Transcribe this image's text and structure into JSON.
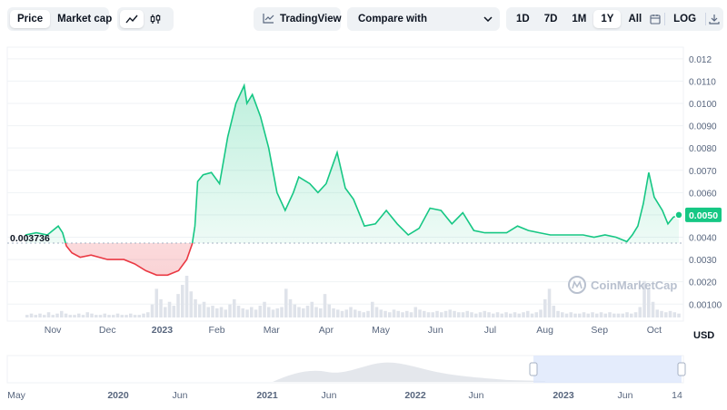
{
  "toolbar": {
    "view_tabs": [
      "Price",
      "Market cap"
    ],
    "active_view": "Price",
    "chart_style_icons": [
      "line-chart-icon",
      "candlestick-chart-icon"
    ],
    "tradingview_label": "TradingView",
    "compare_label": "Compare with",
    "ranges": [
      "1D",
      "7D",
      "1M",
      "1Y",
      "All"
    ],
    "active_range": "1Y",
    "log_label": "LOG"
  },
  "colors": {
    "up": "#16c784",
    "down": "#ea3943",
    "accent_badge": "#16c784",
    "navigator_fill": "#dbe6fb"
  },
  "watermark": "CoinMarketCap",
  "currency_label": "USD",
  "chart_data": {
    "type": "line",
    "baseline_value": "0.003736",
    "current_value": "0.0050",
    "y_ticks": [
      "0.012",
      "0.0110",
      "0.0100",
      "0.0090",
      "0.0080",
      "0.0070",
      "0.0060",
      "0.0050",
      "0.0040",
      "0.0030",
      "0.0020",
      "0.00100"
    ],
    "y_tick_values": [
      0.012,
      0.011,
      0.01,
      0.009,
      0.008,
      0.007,
      0.006,
      0.005,
      0.004,
      0.003,
      0.002,
      0.001
    ],
    "ylim": [
      0.0004,
      0.0124
    ],
    "x_ticks": [
      "Nov",
      "Dec",
      "2023",
      "Feb",
      "Mar",
      "Apr",
      "May",
      "Jun",
      "Jul",
      "Aug",
      "Sep",
      "Oct"
    ],
    "x_tick_positions": [
      0.5,
      1.5,
      2.5,
      3.5,
      4.5,
      5.5,
      6.5,
      7.5,
      8.5,
      9.5,
      10.5,
      11.5
    ],
    "xlim": [
      0,
      12
    ],
    "series": [
      {
        "x": [
          0,
          0.2,
          0.4,
          0.6,
          0.68,
          0.75,
          0.85,
          1.0,
          1.2,
          1.5,
          1.8,
          2.0,
          2.2,
          2.4,
          2.6,
          2.8,
          2.95,
          3.05,
          3.1,
          3.15,
          3.25,
          3.4,
          3.55,
          3.7,
          3.85,
          4.0,
          4.05,
          4.15,
          4.3,
          4.45,
          4.6,
          4.75,
          4.9,
          5.0,
          5.2,
          5.35,
          5.5,
          5.6,
          5.7,
          5.85,
          6.0,
          6.2,
          6.4,
          6.6,
          6.8,
          7.0,
          7.2,
          7.4,
          7.6,
          7.8,
          8.0,
          8.2,
          8.4,
          8.6,
          8.8,
          9.0,
          9.2,
          9.4,
          9.6,
          9.8,
          10.0,
          10.2,
          10.4,
          10.6,
          10.8,
          11.0,
          11.1,
          11.2,
          11.3,
          11.4,
          11.5,
          11.65,
          11.75,
          11.85,
          11.95
        ],
        "y": [
          0.0041,
          0.0042,
          0.0041,
          0.0045,
          0.0042,
          0.0036,
          0.0033,
          0.0031,
          0.0032,
          0.003,
          0.003,
          0.0028,
          0.0025,
          0.0023,
          0.0023,
          0.0025,
          0.003,
          0.0037,
          0.0045,
          0.0065,
          0.0068,
          0.0069,
          0.0064,
          0.0085,
          0.01,
          0.0108,
          0.01,
          0.0104,
          0.0094,
          0.008,
          0.006,
          0.0052,
          0.006,
          0.0067,
          0.0064,
          0.006,
          0.0064,
          0.0071,
          0.0078,
          0.0062,
          0.0057,
          0.0045,
          0.0046,
          0.0052,
          0.0046,
          0.0041,
          0.0044,
          0.0053,
          0.0052,
          0.0046,
          0.0051,
          0.0043,
          0.0042,
          0.0042,
          0.0042,
          0.0045,
          0.0043,
          0.0042,
          0.0041,
          0.0041,
          0.0041,
          0.0041,
          0.004,
          0.0041,
          0.004,
          0.0038,
          0.0041,
          0.0045,
          0.0055,
          0.0069,
          0.0058,
          0.0052,
          0.0046,
          0.0049,
          0.005
        ]
      }
    ],
    "volume_bars": [
      2,
      3,
      2,
      3,
      2,
      4,
      2,
      3,
      5,
      3,
      2,
      2,
      3,
      2,
      4,
      3,
      2,
      2,
      3,
      2,
      2,
      3,
      2,
      2,
      3,
      2,
      2,
      3,
      4,
      10,
      22,
      14,
      8,
      12,
      9,
      18,
      25,
      32,
      20,
      14,
      10,
      12,
      8,
      9,
      7,
      8,
      6,
      10,
      14,
      9,
      7,
      6,
      8,
      6,
      9,
      12,
      8,
      6,
      7,
      8,
      22,
      14,
      10,
      8,
      7,
      9,
      12,
      8,
      7,
      18,
      10,
      7,
      6,
      5,
      6,
      8,
      6,
      5,
      4,
      5,
      12,
      8,
      6,
      5,
      4,
      6,
      5,
      4,
      5,
      4,
      8,
      6,
      5,
      4,
      4,
      5,
      4,
      5,
      6,
      5,
      4,
      4,
      5,
      4,
      3,
      4,
      5,
      4,
      3,
      4,
      3,
      4,
      3,
      4,
      3,
      4,
      5,
      3,
      4,
      6,
      14,
      22,
      9,
      5,
      4,
      3,
      4,
      3,
      3,
      4,
      3,
      4,
      3,
      4,
      3,
      4,
      3,
      3,
      3,
      4,
      3,
      4,
      8,
      28,
      22,
      12,
      6,
      5,
      4,
      5,
      4,
      3
    ],
    "navigator": {
      "x_ticks": [
        "May",
        "2020",
        "Jun",
        "2021",
        "Jun",
        "2022",
        "Jun",
        "2023",
        "Jun",
        "14"
      ]
    }
  }
}
